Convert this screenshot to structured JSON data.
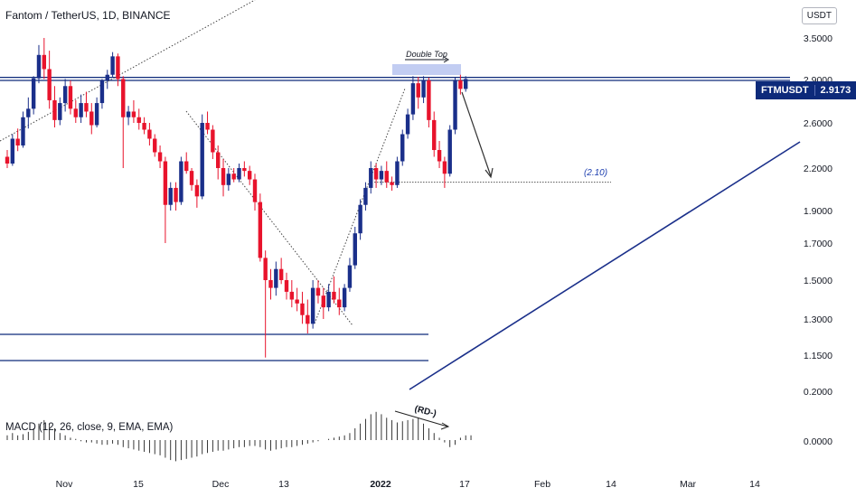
{
  "header": {
    "title": "Fantom / TetherUS, 1D, BINANCE",
    "currency": "USDT"
  },
  "price_badge": {
    "symbol": "FTMUSDT",
    "value": "2.9173"
  },
  "annotations": {
    "double_top": "Double Top",
    "target": "(2.10)",
    "divergence": "(RD-)"
  },
  "macd": {
    "label": "MACD (12, 26, close, 9, EMA, EMA)"
  },
  "colors": {
    "up": "#1a2f8a",
    "down": "#e8132c",
    "level_line": "#0d2a7a",
    "trendline": "#1a2f8a",
    "dotted": "#444444",
    "highlight": "#b7c4f0"
  },
  "chart_data": {
    "type": "candlestick",
    "title": "Fantom / TetherUS, 1D, BINANCE",
    "y_ticks": [
      "3.5000",
      "2.9000",
      "2.6000",
      "2.2000",
      "1.9000",
      "1.7000",
      "1.5000",
      "1.3000",
      "1.1500",
      "0.2000"
    ],
    "macd_ticks": [
      "0.0000"
    ],
    "x_ticks": [
      "Nov",
      "15",
      "Dec",
      "13",
      "2022",
      "17",
      "Feb",
      "14",
      "Mar",
      "14"
    ],
    "last_price": 2.9173,
    "levels": [
      2.9,
      1.2,
      1.1
    ],
    "target": 2.1,
    "candles_ohlc": [
      [
        2.3,
        2.36,
        2.2,
        2.24
      ],
      [
        2.24,
        2.5,
        2.22,
        2.46
      ],
      [
        2.46,
        2.55,
        2.35,
        2.4
      ],
      [
        2.4,
        2.68,
        2.38,
        2.64
      ],
      [
        2.64,
        2.78,
        2.55,
        2.7
      ],
      [
        2.7,
        2.96,
        2.66,
        2.93
      ],
      [
        2.93,
        3.4,
        2.88,
        3.26
      ],
      [
        3.26,
        3.5,
        2.92,
        3.06
      ],
      [
        3.06,
        3.32,
        2.7,
        2.76
      ],
      [
        2.76,
        2.86,
        2.56,
        2.62
      ],
      [
        2.62,
        2.78,
        2.58,
        2.74
      ],
      [
        2.74,
        2.92,
        2.68,
        2.86
      ],
      [
        2.86,
        2.9,
        2.66,
        2.7
      ],
      [
        2.7,
        2.76,
        2.6,
        2.64
      ],
      [
        2.64,
        2.8,
        2.6,
        2.74
      ],
      [
        2.74,
        2.82,
        2.64,
        2.68
      ],
      [
        2.68,
        2.74,
        2.5,
        2.58
      ],
      [
        2.58,
        2.78,
        2.56,
        2.74
      ],
      [
        2.74,
        2.92,
        2.7,
        2.9
      ],
      [
        2.9,
        3.05,
        2.84,
        2.98
      ],
      [
        2.98,
        3.3,
        2.94,
        3.24
      ],
      [
        3.24,
        3.28,
        2.86,
        2.92
      ],
      [
        2.92,
        2.96,
        2.2,
        2.64
      ],
      [
        2.64,
        2.72,
        2.58,
        2.68
      ],
      [
        2.68,
        2.76,
        2.6,
        2.64
      ],
      [
        2.64,
        2.7,
        2.54,
        2.6
      ],
      [
        2.6,
        2.64,
        2.5,
        2.54
      ],
      [
        2.54,
        2.6,
        2.4,
        2.46
      ],
      [
        2.46,
        2.5,
        2.3,
        2.34
      ],
      [
        2.34,
        2.4,
        2.2,
        2.26
      ],
      [
        2.26,
        2.3,
        1.7,
        1.94
      ],
      [
        1.94,
        2.1,
        1.9,
        2.06
      ],
      [
        2.06,
        2.1,
        1.9,
        1.96
      ],
      [
        1.96,
        2.3,
        1.94,
        2.26
      ],
      [
        2.26,
        2.34,
        2.16,
        2.18
      ],
      [
        2.18,
        2.2,
        2.04,
        2.08
      ],
      [
        2.08,
        2.12,
        1.92,
        2.0
      ],
      [
        2.0,
        2.66,
        1.98,
        2.6
      ],
      [
        2.6,
        2.68,
        2.5,
        2.54
      ],
      [
        2.54,
        2.58,
        2.28,
        2.34
      ],
      [
        2.34,
        2.4,
        2.12,
        2.2
      ],
      [
        2.2,
        2.28,
        2.0,
        2.08
      ],
      [
        2.08,
        2.2,
        2.04,
        2.16
      ],
      [
        2.16,
        2.2,
        2.1,
        2.12
      ],
      [
        2.12,
        2.24,
        2.1,
        2.2
      ],
      [
        2.2,
        2.26,
        2.14,
        2.18
      ],
      [
        2.18,
        2.22,
        2.08,
        2.12
      ],
      [
        2.12,
        2.16,
        1.9,
        1.96
      ],
      [
        1.96,
        2.02,
        1.6,
        1.62
      ],
      [
        1.62,
        1.66,
        1.14,
        1.5
      ],
      [
        1.5,
        1.56,
        1.4,
        1.46
      ],
      [
        1.46,
        1.6,
        1.42,
        1.56
      ],
      [
        1.56,
        1.62,
        1.48,
        1.5
      ],
      [
        1.5,
        1.54,
        1.4,
        1.44
      ],
      [
        1.44,
        1.5,
        1.36,
        1.4
      ],
      [
        1.4,
        1.46,
        1.34,
        1.38
      ],
      [
        1.38,
        1.44,
        1.28,
        1.32
      ],
      [
        1.32,
        1.4,
        1.24,
        1.28
      ],
      [
        1.28,
        1.5,
        1.26,
        1.46
      ],
      [
        1.46,
        1.5,
        1.38,
        1.42
      ],
      [
        1.42,
        1.46,
        1.3,
        1.36
      ],
      [
        1.36,
        1.48,
        1.34,
        1.44
      ],
      [
        1.44,
        1.52,
        1.38,
        1.4
      ],
      [
        1.4,
        1.46,
        1.32,
        1.36
      ],
      [
        1.36,
        1.48,
        1.34,
        1.46
      ],
      [
        1.46,
        1.62,
        1.44,
        1.58
      ],
      [
        1.58,
        1.8,
        1.56,
        1.76
      ],
      [
        1.76,
        1.98,
        1.72,
        1.94
      ],
      [
        1.94,
        2.1,
        1.9,
        2.06
      ],
      [
        2.06,
        2.26,
        2.02,
        2.2
      ],
      [
        2.2,
        2.24,
        2.06,
        2.12
      ],
      [
        2.12,
        2.22,
        2.08,
        2.18
      ],
      [
        2.18,
        2.26,
        2.06,
        2.1
      ],
      [
        2.1,
        2.14,
        2.04,
        2.08
      ],
      [
        2.08,
        2.3,
        2.06,
        2.26
      ],
      [
        2.26,
        2.54,
        2.22,
        2.5
      ],
      [
        2.5,
        2.7,
        2.46,
        2.66
      ],
      [
        2.66,
        2.96,
        2.62,
        2.88
      ],
      [
        2.88,
        2.95,
        2.7,
        2.78
      ],
      [
        2.78,
        2.96,
        2.74,
        2.9
      ],
      [
        2.9,
        2.94,
        2.56,
        2.62
      ],
      [
        2.62,
        2.68,
        2.3,
        2.36
      ],
      [
        2.36,
        2.44,
        2.2,
        2.26
      ],
      [
        2.26,
        2.3,
        2.06,
        2.16
      ],
      [
        2.16,
        2.58,
        2.14,
        2.54
      ],
      [
        2.54,
        2.94,
        2.5,
        2.9
      ],
      [
        2.9,
        2.98,
        2.8,
        2.84
      ],
      [
        2.84,
        2.96,
        2.82,
        2.92
      ]
    ],
    "macd_hist": [
      0.2,
      0.3,
      0.2,
      0.25,
      0.35,
      0.5,
      0.7,
      0.85,
      0.7,
      0.5,
      0.3,
      0.2,
      0.1,
      0.05,
      -0.05,
      -0.1,
      -0.1,
      -0.15,
      -0.2,
      -0.2,
      -0.15,
      -0.2,
      -0.3,
      -0.35,
      -0.4,
      -0.45,
      -0.5,
      -0.55,
      -0.6,
      -0.65,
      -0.75,
      -0.85,
      -0.9,
      -0.85,
      -0.8,
      -0.75,
      -0.7,
      -0.6,
      -0.55,
      -0.5,
      -0.45,
      -0.45,
      -0.4,
      -0.35,
      -0.3,
      -0.3,
      -0.25,
      -0.25,
      -0.3,
      -0.4,
      -0.45,
      -0.4,
      -0.35,
      -0.3,
      -0.3,
      -0.25,
      -0.2,
      -0.15,
      -0.1,
      -0.05,
      0.0,
      0.05,
      0.1,
      0.15,
      0.2,
      0.3,
      0.5,
      0.7,
      0.9,
      1.1,
      1.2,
      1.1,
      0.95,
      0.85,
      0.75,
      0.8,
      0.85,
      0.9,
      0.95,
      0.7,
      0.5,
      0.3,
      0.1,
      -0.1,
      -0.3,
      -0.2,
      0.1,
      0.2,
      0.2
    ]
  }
}
